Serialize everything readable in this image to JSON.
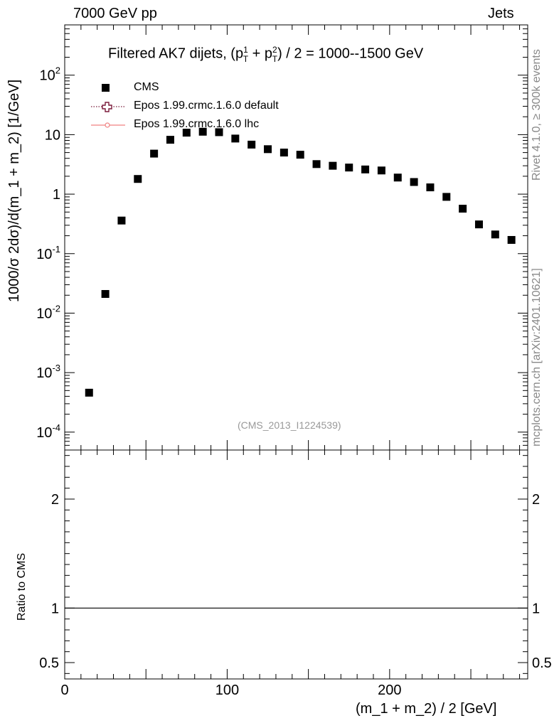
{
  "header": {
    "left": "7000 GeV pp",
    "right": "Jets"
  },
  "side_text": {
    "rivet": "Rivet 4.1.0, ≥ 300k events",
    "site": "mcplots.cern.ch [arXiv:2401.10621]"
  },
  "title_parts": {
    "prefix": "Filtered AK7 dijets, (p",
    "sup1": "1",
    "sub1": "T",
    "plus": " + p",
    "sup2": "2",
    "sub2": "T",
    "suffix": ") / 2 = 1000--1500 GeV"
  },
  "analysis_id": "(CMS_2013_I1224539)",
  "colors": {
    "data": "#000000",
    "epos_default": "#7a1a3a",
    "epos_lhc": "#f08080",
    "annotation": "#999999"
  },
  "chart_data": [
    {
      "type": "scatter",
      "xlabel": "(m_1 + m_2) / 2 [GeV]",
      "ylabel": "1000/σ  2dσ)/d(m_1 + m_2) [1/GeV]",
      "xlim": [
        0,
        285
      ],
      "ylim": [
        5e-05,
        700
      ],
      "yscale": "log",
      "grid": false,
      "legend_position": "top-left",
      "ytick_labels": [
        {
          "mant": "10",
          "exp": "-4",
          "value": 0.0001
        },
        {
          "mant": "10",
          "exp": "-3",
          "value": 0.001
        },
        {
          "mant": "10",
          "exp": "-2",
          "value": 0.01
        },
        {
          "mant": "10",
          "exp": "-1",
          "value": 0.1
        },
        {
          "mant": "1",
          "exp": "",
          "value": 1
        },
        {
          "mant": "10",
          "exp": "",
          "value": 10
        },
        {
          "mant": "10",
          "exp": "2",
          "value": 100
        }
      ],
      "series": [
        {
          "name": "CMS",
          "marker": "square",
          "x": [
            15,
            25,
            35,
            45,
            55,
            65,
            75,
            85,
            95,
            105,
            115,
            125,
            135,
            145,
            155,
            165,
            175,
            185,
            195,
            205,
            215,
            225,
            235,
            245,
            255,
            265,
            275
          ],
          "y": [
            0.00046,
            0.021,
            0.36,
            1.8,
            4.8,
            8.2,
            10.8,
            11.2,
            11.0,
            8.6,
            6.8,
            5.7,
            5.0,
            4.6,
            3.2,
            3.0,
            2.8,
            2.6,
            2.5,
            1.9,
            1.6,
            1.3,
            0.9,
            0.57,
            0.31,
            0.21,
            0.17
          ]
        },
        {
          "name": "Epos 1.99.crmc.1.6.0 default",
          "marker": "open-cross",
          "line": "dotted",
          "x": [],
          "y": []
        },
        {
          "name": "Epos 1.99.crmc.1.6.0 lhc",
          "marker": "circle",
          "line": "solid",
          "x": [],
          "y": []
        }
      ]
    },
    {
      "type": "line",
      "ylabel": "Ratio to CMS",
      "xlim": [
        0,
        285
      ],
      "ylim": [
        0.35,
        2.45
      ],
      "yticks": [
        0.5,
        1,
        2
      ],
      "ytick_labels": [
        "0.5",
        "1",
        "2"
      ],
      "xticks": [
        0,
        100,
        200
      ],
      "xtick_labels": [
        "0",
        "100",
        "200"
      ],
      "reference_line": 1
    }
  ]
}
